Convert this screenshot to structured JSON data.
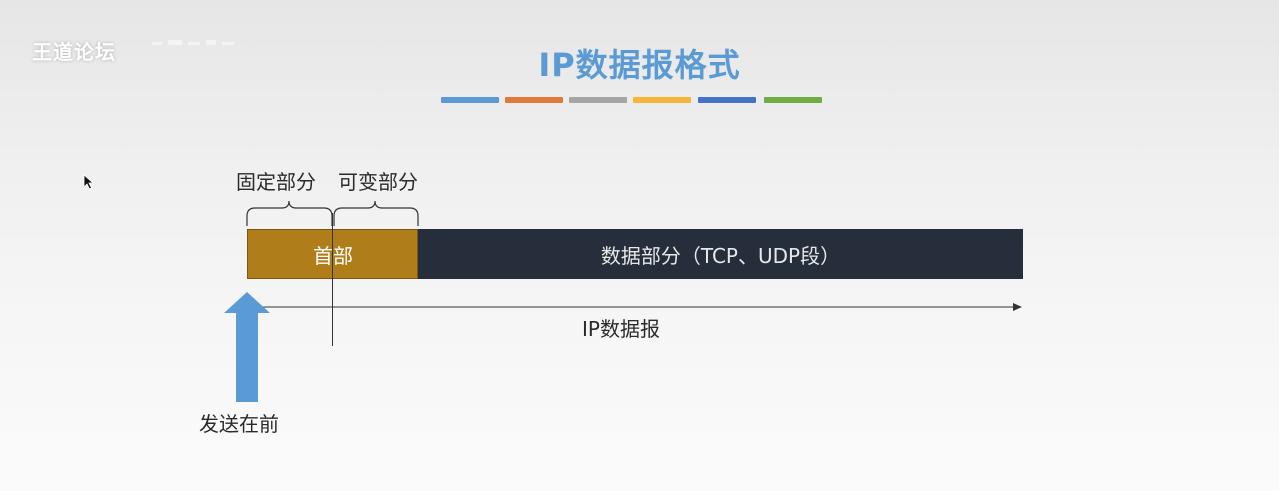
{
  "watermark": {
    "text": "王道论坛"
  },
  "slide": {
    "title": "IP数据报格式",
    "title_color": "#5b9bd5",
    "color_strip": [
      "#5b9bd5",
      "#e07a3a",
      "#a5a5a5",
      "#f5b73a",
      "#4472c4",
      "#70ad47"
    ]
  },
  "diagram": {
    "fixed_part_label": "固定部分",
    "variable_part_label": "可变部分",
    "header_label": "首部",
    "header_color": "#b07d1b",
    "data_part_label": "数据部分（TCP、UDP段）",
    "data_part_color": "#262e3b",
    "datagram_label": "IP数据报",
    "send_first_label": "发送在前",
    "send_arrow_color": "#5b9bd5"
  }
}
